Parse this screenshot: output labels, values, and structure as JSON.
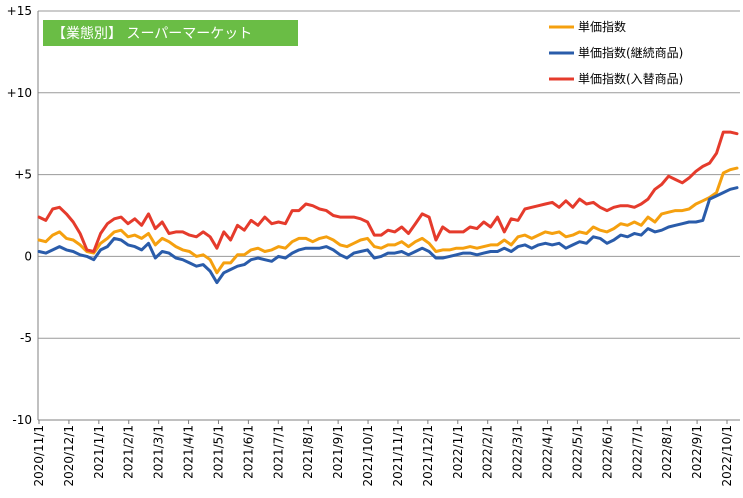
{
  "chart_data": {
    "type": "line",
    "title": "【業態別】 スーパーマーケット",
    "title_bg": "#6abd45",
    "ylim": [
      -10,
      15
    ],
    "y_ticks": [
      {
        "value": 15,
        "label": "+15"
      },
      {
        "value": 10,
        "label": "+10"
      },
      {
        "value": 5,
        "label": "+5"
      },
      {
        "value": 0,
        "label": "0"
      },
      {
        "value": -5,
        "label": "-5"
      },
      {
        "value": -10,
        "label": "-10"
      }
    ],
    "x_tick_labels": [
      "2020/11/1",
      "2020/12/1",
      "2021/1/1",
      "2021/2/1",
      "2021/3/1",
      "2021/4/1",
      "2021/5/1",
      "2021/6/1",
      "2021/7/1",
      "2021/8/1",
      "2021/9/1",
      "2021/10/1",
      "2021/11/1",
      "2021/12/1",
      "2022/1/1",
      "2022/2/1",
      "2022/3/1",
      "2022/4/1",
      "2022/5/1",
      "2022/6/1",
      "2022/7/1",
      "2022/8/1",
      "2022/9/1",
      "2022/10/1"
    ],
    "grid": "horizontal",
    "legend_position": "top-right",
    "series": [
      {
        "name": "単価指数",
        "color": "#f5a00f",
        "values": [
          1.0,
          0.9,
          1.3,
          1.5,
          1.1,
          1.0,
          0.7,
          0.3,
          0.2,
          0.8,
          1.1,
          1.5,
          1.6,
          1.2,
          1.3,
          1.1,
          1.4,
          0.7,
          1.1,
          0.9,
          0.6,
          0.4,
          0.3,
          0.0,
          0.1,
          -0.2,
          -1.0,
          -0.4,
          -0.4,
          0.1,
          0.1,
          0.4,
          0.5,
          0.3,
          0.4,
          0.6,
          0.5,
          0.9,
          1.1,
          1.1,
          0.9,
          1.1,
          1.2,
          1.0,
          0.7,
          0.6,
          0.8,
          1.0,
          1.1,
          0.6,
          0.5,
          0.7,
          0.7,
          0.9,
          0.6,
          0.9,
          1.1,
          0.8,
          0.3,
          0.4,
          0.4,
          0.5,
          0.5,
          0.6,
          0.5,
          0.6,
          0.7,
          0.7,
          1.0,
          0.7,
          1.2,
          1.3,
          1.1,
          1.3,
          1.5,
          1.4,
          1.5,
          1.2,
          1.3,
          1.5,
          1.4,
          1.8,
          1.6,
          1.5,
          1.7,
          2.0,
          1.9,
          2.1,
          1.9,
          2.4,
          2.1,
          2.6,
          2.7,
          2.8,
          2.8,
          2.9,
          3.2,
          3.4,
          3.6,
          3.9,
          5.1,
          5.3,
          5.4
        ]
      },
      {
        "name": "単価指数(継続商品)",
        "color": "#2a5caa",
        "values": [
          0.3,
          0.2,
          0.4,
          0.6,
          0.4,
          0.3,
          0.1,
          0.0,
          -0.2,
          0.4,
          0.6,
          1.1,
          1.0,
          0.7,
          0.6,
          0.4,
          0.8,
          -0.1,
          0.3,
          0.2,
          -0.1,
          -0.2,
          -0.4,
          -0.6,
          -0.5,
          -0.9,
          -1.6,
          -1.0,
          -0.8,
          -0.6,
          -0.5,
          -0.2,
          -0.1,
          -0.2,
          -0.3,
          0.0,
          -0.1,
          0.2,
          0.4,
          0.5,
          0.5,
          0.5,
          0.6,
          0.4,
          0.1,
          -0.1,
          0.2,
          0.3,
          0.4,
          -0.1,
          0.0,
          0.2,
          0.2,
          0.3,
          0.1,
          0.3,
          0.5,
          0.3,
          -0.1,
          -0.1,
          0.0,
          0.1,
          0.2,
          0.2,
          0.1,
          0.2,
          0.3,
          0.3,
          0.5,
          0.3,
          0.6,
          0.7,
          0.5,
          0.7,
          0.8,
          0.7,
          0.8,
          0.5,
          0.7,
          0.9,
          0.8,
          1.2,
          1.1,
          0.8,
          1.0,
          1.3,
          1.2,
          1.4,
          1.3,
          1.7,
          1.5,
          1.6,
          1.8,
          1.9,
          2.0,
          2.1,
          2.1,
          2.2,
          3.5,
          3.7,
          3.9,
          4.1,
          4.2
        ]
      },
      {
        "name": "単価指数(入替商品)",
        "color": "#e53b2c",
        "values": [
          2.4,
          2.2,
          2.9,
          3.0,
          2.6,
          2.1,
          1.4,
          0.4,
          0.3,
          1.4,
          2.0,
          2.3,
          2.4,
          2.0,
          2.3,
          1.9,
          2.6,
          1.7,
          2.1,
          1.4,
          1.5,
          1.5,
          1.3,
          1.2,
          1.5,
          1.2,
          0.5,
          1.5,
          1.0,
          1.9,
          1.6,
          2.2,
          1.9,
          2.4,
          2.0,
          2.1,
          2.0,
          2.8,
          2.8,
          3.2,
          3.1,
          2.9,
          2.8,
          2.5,
          2.4,
          2.4,
          2.4,
          2.3,
          2.1,
          1.3,
          1.3,
          1.6,
          1.5,
          1.8,
          1.4,
          2.0,
          2.6,
          2.4,
          1.0,
          1.8,
          1.5,
          1.5,
          1.5,
          1.8,
          1.7,
          2.1,
          1.8,
          2.4,
          1.5,
          2.3,
          2.2,
          2.9,
          3.0,
          3.1,
          3.2,
          3.3,
          3.0,
          3.4,
          3.0,
          3.5,
          3.2,
          3.3,
          3.0,
          2.8,
          3.0,
          3.1,
          3.1,
          3.0,
          3.2,
          3.5,
          4.1,
          4.4,
          4.9,
          4.7,
          4.5,
          4.8,
          5.2,
          5.5,
          5.7,
          6.3,
          7.6,
          7.6,
          7.5
        ]
      }
    ]
  }
}
